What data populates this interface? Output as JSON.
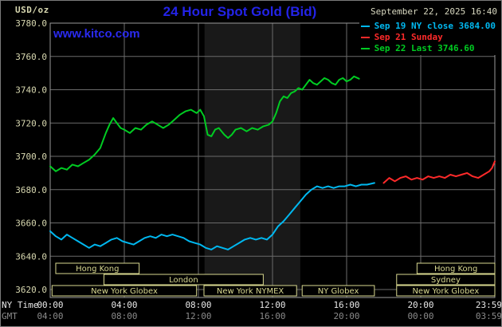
{
  "header": {
    "units": "USD/oz",
    "title": "24 Hour Spot Gold (Bid)",
    "datetime": "September 22, 2025 16:40",
    "watermark": "www.kitco.com",
    "legend": [
      {
        "label": "Sep 19 NY close 3684.00",
        "color": "#00b8f0"
      },
      {
        "label": "Sep 21 Sunday",
        "color": "#ff2a2a"
      },
      {
        "label": "Sep 22 Last 3746.60",
        "color": "#00cc22"
      }
    ]
  },
  "axes": {
    "label_ny": "NY Time",
    "label_gmt": "GMT",
    "x_tick_hours": [
      0,
      4,
      8,
      12,
      16,
      20,
      23.983
    ],
    "x_ticks_ny": [
      "00:00",
      "04:00",
      "08:00",
      "12:00",
      "16:00",
      "20:00",
      "23:59"
    ],
    "x_ticks_gmt": [
      "04:00",
      "08:00",
      "12:00",
      "16:00",
      "20:00",
      "00:00",
      "03:59"
    ],
    "y_tick_step": 20
  },
  "colors": {
    "background": "#000000",
    "grid": "#6b6b6b",
    "axis": "#9a9a9a",
    "tick_text": "#d8d8b0",
    "ny_label": "#e8e8e8",
    "gmt_label": "#8a8a8a",
    "session": "#d8d890",
    "title_blue": "#2323e8"
  },
  "chart_data": {
    "type": "line",
    "title": "24 Hour Spot Gold (Bid)",
    "xlabel": "NY Time",
    "ylabel": "USD/oz",
    "xlim": [
      0,
      24
    ],
    "ylim": [
      3620,
      3780
    ],
    "grid": true,
    "legend_position": "top-right",
    "shaded_band": {
      "start": 8.33,
      "end": 13.5,
      "color": "#191919"
    },
    "series": [
      {
        "name": "Sep 19 NY close 3684.00",
        "color": "#00b8f0",
        "points": [
          [
            0,
            3655
          ],
          [
            0.3,
            3652
          ],
          [
            0.6,
            3650
          ],
          [
            0.9,
            3653
          ],
          [
            1.2,
            3651
          ],
          [
            1.5,
            3649
          ],
          [
            1.8,
            3647
          ],
          [
            2.1,
            3645
          ],
          [
            2.4,
            3647
          ],
          [
            2.7,
            3646
          ],
          [
            3.0,
            3648
          ],
          [
            3.3,
            3650
          ],
          [
            3.6,
            3651
          ],
          [
            3.9,
            3649
          ],
          [
            4.2,
            3648
          ],
          [
            4.5,
            3647
          ],
          [
            4.8,
            3649
          ],
          [
            5.1,
            3651
          ],
          [
            5.4,
            3652
          ],
          [
            5.7,
            3651
          ],
          [
            6.0,
            3653
          ],
          [
            6.3,
            3652
          ],
          [
            6.6,
            3653
          ],
          [
            6.9,
            3652
          ],
          [
            7.2,
            3651
          ],
          [
            7.5,
            3649
          ],
          [
            7.8,
            3648
          ],
          [
            8.1,
            3647
          ],
          [
            8.4,
            3645
          ],
          [
            8.7,
            3644
          ],
          [
            9.0,
            3646
          ],
          [
            9.3,
            3645
          ],
          [
            9.6,
            3644
          ],
          [
            9.9,
            3646
          ],
          [
            10.2,
            3648
          ],
          [
            10.5,
            3650
          ],
          [
            10.8,
            3651
          ],
          [
            11.1,
            3650
          ],
          [
            11.4,
            3651
          ],
          [
            11.7,
            3650
          ],
          [
            12.0,
            3653
          ],
          [
            12.3,
            3658
          ],
          [
            12.6,
            3661
          ],
          [
            12.9,
            3665
          ],
          [
            13.2,
            3669
          ],
          [
            13.5,
            3673
          ],
          [
            13.8,
            3677
          ],
          [
            14.1,
            3680
          ],
          [
            14.4,
            3682
          ],
          [
            14.7,
            3681
          ],
          [
            15.0,
            3682
          ],
          [
            15.3,
            3681
          ],
          [
            15.6,
            3682
          ],
          [
            15.9,
            3682
          ],
          [
            16.2,
            3683
          ],
          [
            16.5,
            3682
          ],
          [
            16.8,
            3683
          ],
          [
            17.1,
            3683
          ],
          [
            17.5,
            3684
          ]
        ]
      },
      {
        "name": "Sep 21 Sunday",
        "color": "#ff2a2a",
        "points": [
          [
            18.0,
            3684
          ],
          [
            18.3,
            3687
          ],
          [
            18.6,
            3685
          ],
          [
            18.9,
            3687
          ],
          [
            19.2,
            3688
          ],
          [
            19.5,
            3686
          ],
          [
            19.8,
            3687
          ],
          [
            20.1,
            3686
          ],
          [
            20.4,
            3688
          ],
          [
            20.7,
            3687
          ],
          [
            21.0,
            3688
          ],
          [
            21.3,
            3687
          ],
          [
            21.6,
            3689
          ],
          [
            21.9,
            3688
          ],
          [
            22.2,
            3689
          ],
          [
            22.5,
            3690
          ],
          [
            22.8,
            3688
          ],
          [
            23.1,
            3687
          ],
          [
            23.4,
            3689
          ],
          [
            23.7,
            3691
          ],
          [
            23.85,
            3693
          ],
          [
            24.0,
            3697
          ]
        ]
      },
      {
        "name": "Sep 22 Last 3746.60",
        "color": "#00cc22",
        "points": [
          [
            0,
            3694
          ],
          [
            0.3,
            3691
          ],
          [
            0.6,
            3693
          ],
          [
            0.9,
            3692
          ],
          [
            1.2,
            3695
          ],
          [
            1.5,
            3694
          ],
          [
            1.8,
            3696
          ],
          [
            2.1,
            3698
          ],
          [
            2.4,
            3701
          ],
          [
            2.7,
            3705
          ],
          [
            3.0,
            3714
          ],
          [
            3.2,
            3719
          ],
          [
            3.4,
            3723
          ],
          [
            3.6,
            3720
          ],
          [
            3.8,
            3717
          ],
          [
            4.0,
            3716
          ],
          [
            4.3,
            3714
          ],
          [
            4.6,
            3717
          ],
          [
            4.9,
            3716
          ],
          [
            5.2,
            3719
          ],
          [
            5.5,
            3721
          ],
          [
            5.8,
            3719
          ],
          [
            6.1,
            3717
          ],
          [
            6.4,
            3719
          ],
          [
            6.7,
            3722
          ],
          [
            7.0,
            3725
          ],
          [
            7.3,
            3727
          ],
          [
            7.6,
            3728
          ],
          [
            7.9,
            3726
          ],
          [
            8.1,
            3728
          ],
          [
            8.3,
            3724
          ],
          [
            8.5,
            3713
          ],
          [
            8.7,
            3712
          ],
          [
            8.9,
            3716
          ],
          [
            9.1,
            3717
          ],
          [
            9.4,
            3713
          ],
          [
            9.6,
            3711
          ],
          [
            9.8,
            3713
          ],
          [
            10.0,
            3716
          ],
          [
            10.3,
            3717
          ],
          [
            10.6,
            3715
          ],
          [
            10.9,
            3717
          ],
          [
            11.2,
            3716
          ],
          [
            11.5,
            3718
          ],
          [
            11.8,
            3719
          ],
          [
            12.0,
            3721
          ],
          [
            12.2,
            3726
          ],
          [
            12.4,
            3733
          ],
          [
            12.6,
            3736
          ],
          [
            12.8,
            3735
          ],
          [
            13.0,
            3738
          ],
          [
            13.2,
            3739
          ],
          [
            13.4,
            3741
          ],
          [
            13.6,
            3740
          ],
          [
            13.8,
            3743
          ],
          [
            14.0,
            3746
          ],
          [
            14.2,
            3744
          ],
          [
            14.4,
            3743
          ],
          [
            14.6,
            3745
          ],
          [
            14.8,
            3747
          ],
          [
            15.0,
            3746
          ],
          [
            15.2,
            3744
          ],
          [
            15.4,
            3743
          ],
          [
            15.6,
            3746
          ],
          [
            15.8,
            3747
          ],
          [
            16.0,
            3745
          ],
          [
            16.2,
            3746
          ],
          [
            16.4,
            3748
          ],
          [
            16.67,
            3746.6
          ]
        ]
      }
    ],
    "sessions": [
      {
        "row": 1,
        "start": 0.3,
        "end": 4.8,
        "label": "Hong Kong"
      },
      {
        "row": 1,
        "start": 19.8,
        "end": 24,
        "label": "Hong Kong"
      },
      {
        "row": 2,
        "start": 2.9,
        "end": 11.5,
        "label": "London"
      },
      {
        "row": 2,
        "start": 18.7,
        "end": 24,
        "label": "Sydney"
      },
      {
        "row": 3,
        "start": 0.1,
        "end": 7.9,
        "label": "New York Globex"
      },
      {
        "row": 3,
        "start": 8.3,
        "end": 13.3,
        "label": "New York NYMEX"
      },
      {
        "row": 3,
        "start": 13.6,
        "end": 17.5,
        "label": "NY Globex"
      },
      {
        "row": 3,
        "start": 18.7,
        "end": 24,
        "label": "New York Globex"
      }
    ]
  }
}
